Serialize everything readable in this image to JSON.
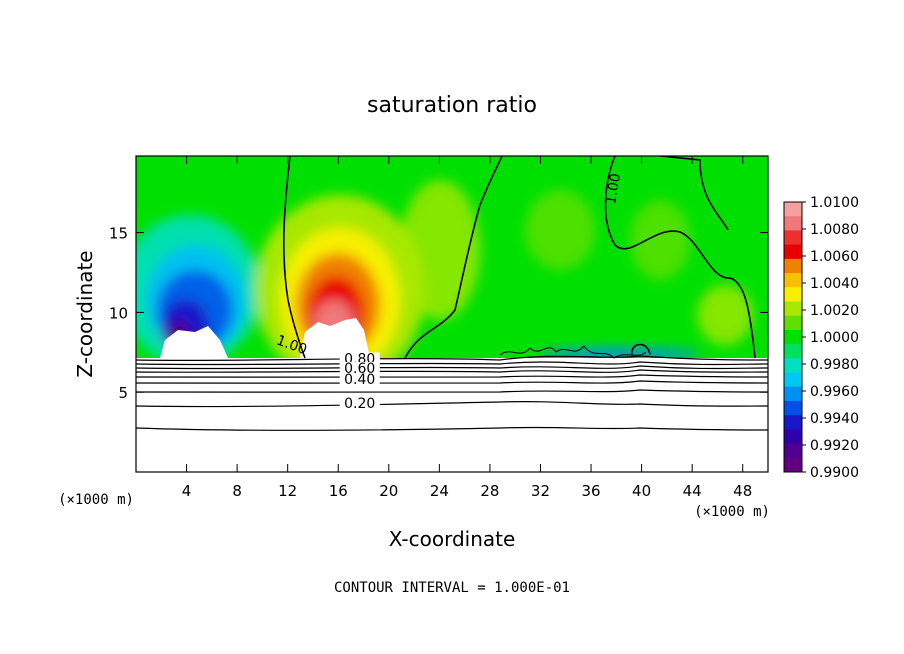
{
  "chart_data": {
    "type": "heatmap",
    "title": "saturation ratio",
    "xlabel": "X-coordinate",
    "ylabel": "Z-coordinate",
    "x_unit_label": "(×1000 m)",
    "z_unit_label": "(×1000 m)",
    "xlim": [
      0,
      50
    ],
    "ylim": [
      0,
      19.8
    ],
    "x_ticks": [
      4,
      8,
      12,
      16,
      20,
      24,
      28,
      32,
      36,
      40,
      44,
      48
    ],
    "y_ticks": [
      5,
      10,
      15
    ],
    "footer": "CONTOUR INTERVAL = 1.000E-01",
    "colorbar": {
      "labels": [
        "1.0100",
        "1.0080",
        "1.0060",
        "1.0040",
        "1.0020",
        "1.0000",
        "0.9980",
        "0.9960",
        "0.9940",
        "0.9920",
        "0.9900"
      ],
      "range": [
        0.99,
        1.01
      ],
      "colors": [
        "#f5a0a0",
        "#f07878",
        "#ec3030",
        "#e80000",
        "#f08000",
        "#f8c000",
        "#f8f000",
        "#a8e800",
        "#60e000",
        "#00e000",
        "#00e060",
        "#00e0c0",
        "#00c8f0",
        "#0090f0",
        "#0050e8",
        "#1818c8",
        "#3000a8",
        "#500090",
        "#600080"
      ]
    },
    "contour_labels": [
      {
        "text": "1.00",
        "x": 38.1,
        "z": 17.7
      },
      {
        "text": "1.00",
        "x": 12.2,
        "z": 7.7
      },
      {
        "text": "0.80",
        "x": 17.7,
        "z": 6.8
      },
      {
        "text": "0.60",
        "x": 17.7,
        "z": 6.2
      },
      {
        "text": "0.40",
        "x": 17.7,
        "z": 5.5
      },
      {
        "text": "0.20",
        "x": 17.7,
        "z": 4.0
      }
    ],
    "ground_contour_levels": [
      0.1,
      0.2,
      0.3,
      0.4,
      0.5,
      0.6,
      0.7,
      0.8,
      0.9
    ]
  }
}
